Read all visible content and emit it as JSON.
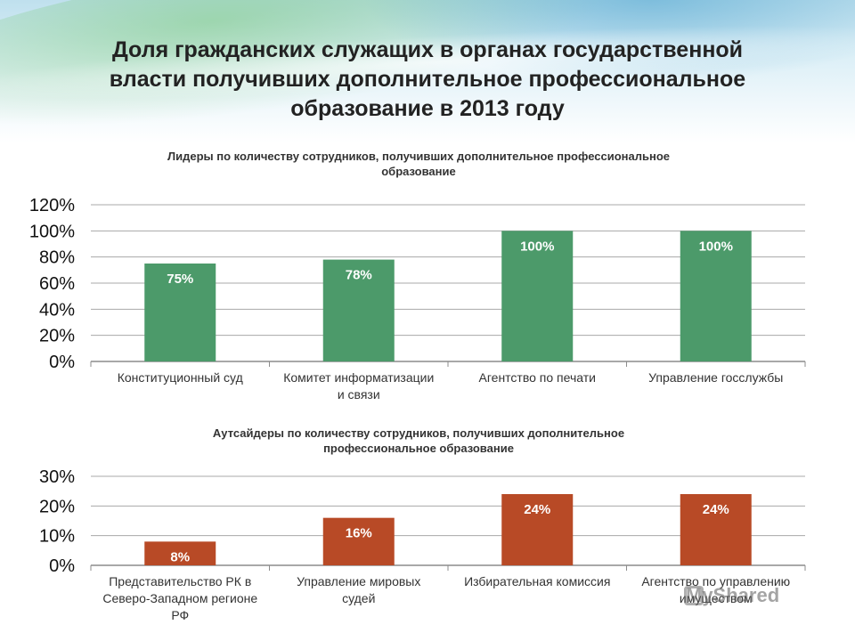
{
  "slide": {
    "title": "Доля гражданских служащих в органах государственной\nвласти получивших дополнительное профессиональное\nобразование в 2013 году"
  },
  "watermark": {
    "text": "MyShared",
    "icon": "presentation-icon"
  },
  "colors": {
    "leaders_bar": "#4c9a6a",
    "outsiders_bar": "#b84a26",
    "grid": "#a8a8a8",
    "axis": "#8c8c8c"
  },
  "chart_data": [
    {
      "type": "bar",
      "title": "Лидеры по количеству сотрудников, получивших дополнительное профессиональное\nобразование",
      "categories": [
        "Конституционный суд",
        "Комитет информатизации\nи связи",
        "Агентство по печати",
        "Управление госслужбы"
      ],
      "values": [
        75,
        78,
        100,
        100
      ],
      "data_labels": [
        "75%",
        "78%",
        "100%",
        "100%"
      ],
      "yticks": [
        "0%",
        "20%",
        "40%",
        "60%",
        "80%",
        "100%",
        "120%"
      ],
      "ylim": [
        0,
        120
      ],
      "grid": true,
      "legend": "none"
    },
    {
      "type": "bar",
      "title": "Аутсайдеры по количеству сотрудников, получивших дополнительное\nпрофессиональное образование",
      "categories": [
        "Представительство РК в\nСеверо-Западном регионе\nРФ",
        "Управление мировых\nсудей",
        "Избирательная комиссия",
        "Агентство по управлению\nимуществом"
      ],
      "values": [
        8,
        16,
        24,
        24
      ],
      "data_labels": [
        "8%",
        "16%",
        "24%",
        "24%"
      ],
      "yticks": [
        "0%",
        "10%",
        "20%",
        "30%"
      ],
      "ylim": [
        0,
        30
      ],
      "grid": true,
      "legend": "none"
    }
  ]
}
